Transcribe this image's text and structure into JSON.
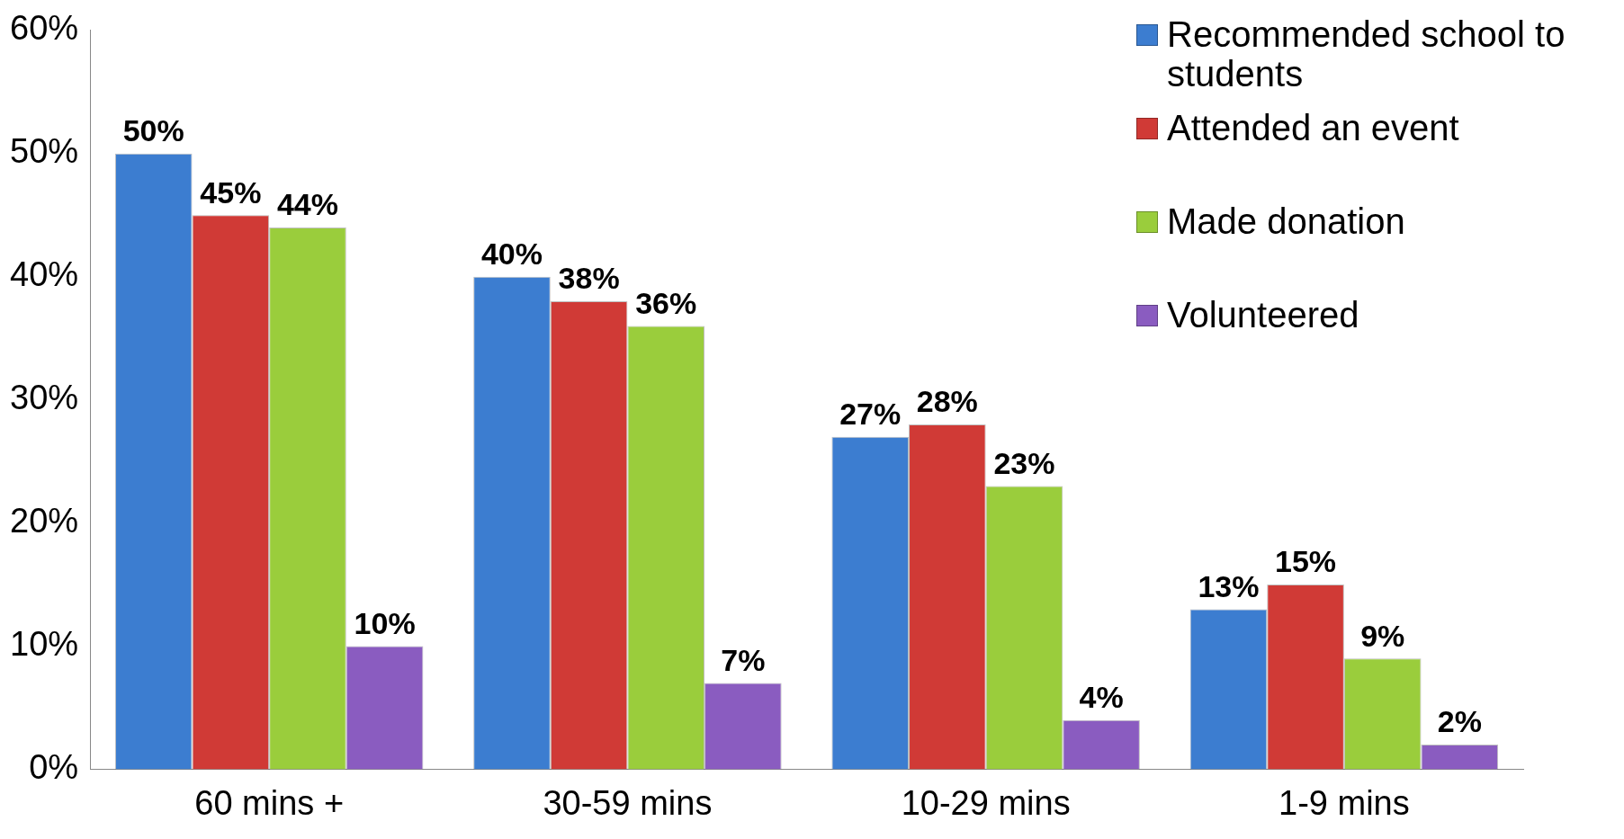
{
  "chart_data": {
    "type": "bar",
    "categories": [
      "60 mins +",
      "30-59 mins",
      "10-29 mins",
      "1-9 mins"
    ],
    "series": [
      {
        "name": "Recommended school to students",
        "color": "#3c7dd0",
        "values": [
          50,
          40,
          27,
          13
        ],
        "value_labels": [
          "50%",
          "40%",
          "27%",
          "13%"
        ]
      },
      {
        "name": "Attended an event",
        "color": "#d03a36",
        "values": [
          45,
          38,
          28,
          15
        ],
        "value_labels": [
          "45%",
          "38%",
          "28%",
          "15%"
        ]
      },
      {
        "name": "Made donation",
        "color": "#9acd3c",
        "values": [
          44,
          36,
          23,
          9
        ],
        "value_labels": [
          "44%",
          "36%",
          "23%",
          "9%"
        ]
      },
      {
        "name": "Volunteered",
        "color": "#8a5cc0",
        "values": [
          10,
          7,
          4,
          2
        ],
        "value_labels": [
          "10%",
          "7%",
          "4%",
          "2%"
        ]
      }
    ],
    "ylim": [
      0,
      60
    ],
    "yticks": [
      {
        "value": 0,
        "label": "0%"
      },
      {
        "value": 10,
        "label": "10%"
      },
      {
        "value": 20,
        "label": "20%"
      },
      {
        "value": 30,
        "label": "30%"
      },
      {
        "value": 40,
        "label": "40%"
      },
      {
        "value": 50,
        "label": "50%"
      },
      {
        "value": 60,
        "label": "60%"
      }
    ],
    "grid": false,
    "legend": "top right"
  }
}
